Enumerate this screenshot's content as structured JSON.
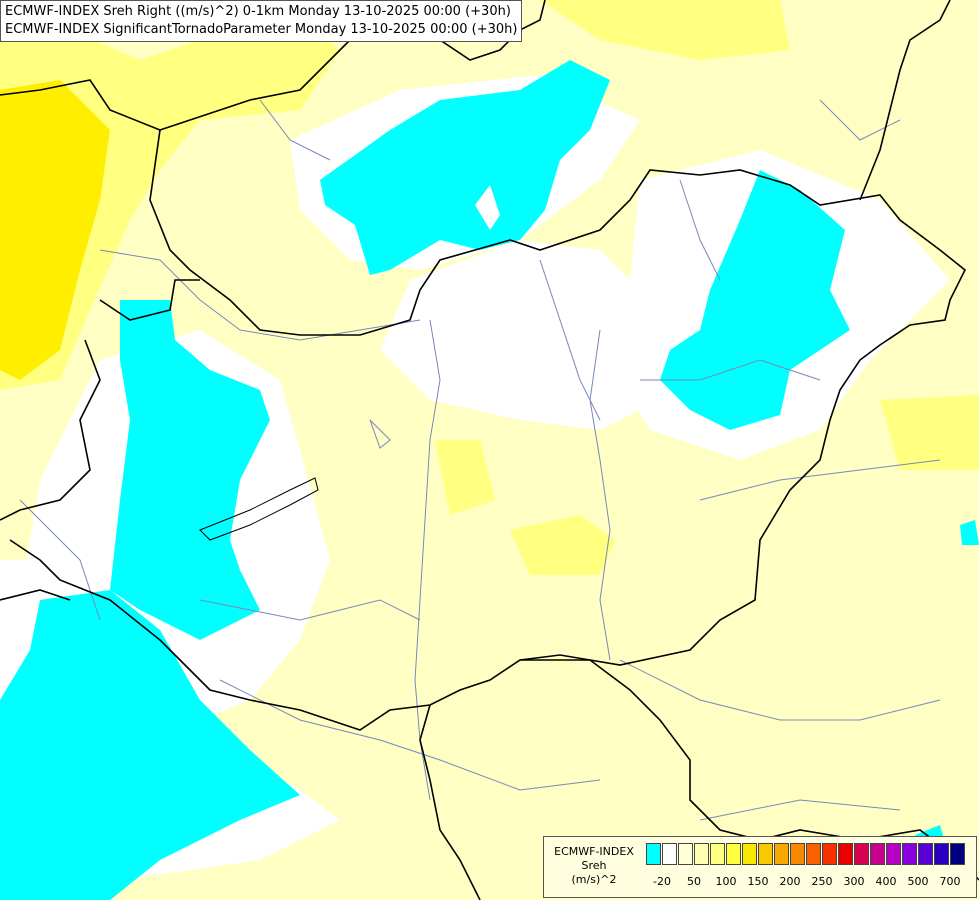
{
  "title_lines": [
    "ECMWF-INDEX Sreh Right ((m/s)^2) 0-1km Monday 13-10-2025 00:00 (+30h)",
    "ECMWF-INDEX SignificantTornadoParameter Monday 13-10-2025 00:00 (+30h)"
  ],
  "legend": {
    "source": "ECMWF-INDEX",
    "variable": "Sreh",
    "unit": "(m/s)^2",
    "colors": [
      "#00ffff",
      "#ffffff",
      "#ffffd8",
      "#ffffb0",
      "#ffff80",
      "#ffff40",
      "#f8e800",
      "#f8c800",
      "#f8a800",
      "#f88800",
      "#f86000",
      "#f83000",
      "#e80000",
      "#d80050",
      "#c80090",
      "#b800c8",
      "#8800e0",
      "#5800d8",
      "#2800c0",
      "#000080"
    ],
    "tick_labels": [
      "-20",
      "50",
      "100",
      "150",
      "200",
      "250",
      "300",
      "400",
      "500",
      "700"
    ]
  },
  "colors": {
    "background": "#ffffc4",
    "cyan": "#00ffff",
    "white": "#ffffff",
    "yellow": "#ffff80",
    "dark_yellow": "#ffee00",
    "border": "#000000",
    "river": "#7788bb"
  }
}
